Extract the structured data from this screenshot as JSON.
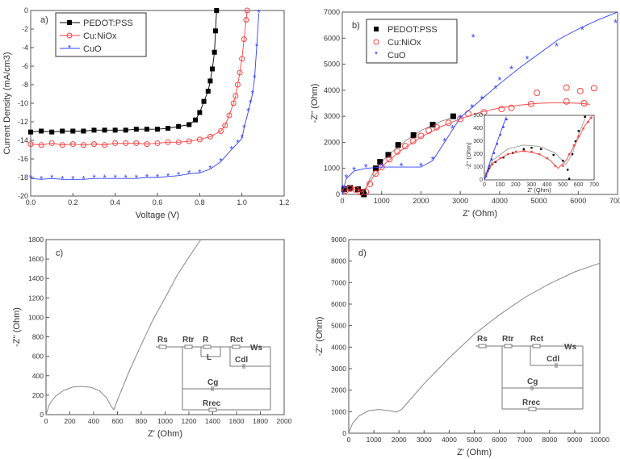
{
  "chart_data": [
    {
      "panel": "a)",
      "type": "line",
      "xlabel": "Voltage (V)",
      "ylabel": "Current Density (mA/cm3)",
      "xlim": [
        0,
        1.2
      ],
      "ylim": [
        -20,
        0
      ],
      "xticks": [
        "0.0",
        "0.2",
        "0.4",
        "0.6",
        "0.8",
        "1.0",
        "1.2"
      ],
      "yticks": [
        "0",
        "-2",
        "-4",
        "-6",
        "-8",
        "-10",
        "-12",
        "-14",
        "-16",
        "-18",
        "-20"
      ],
      "legend": "top-left",
      "series": [
        {
          "name": "PEDOT:PSS",
          "color": "#000000",
          "marker": "square",
          "x": [
            0,
            0.05,
            0.1,
            0.15,
            0.2,
            0.25,
            0.3,
            0.35,
            0.4,
            0.45,
            0.5,
            0.55,
            0.6,
            0.65,
            0.7,
            0.75,
            0.78,
            0.8,
            0.82,
            0.84,
            0.85,
            0.86,
            0.87,
            0.875,
            0.88
          ],
          "y": [
            -13.1,
            -13.0,
            -13.1,
            -13.0,
            -13.0,
            -13.0,
            -12.9,
            -12.9,
            -12.9,
            -12.9,
            -12.8,
            -12.8,
            -12.8,
            -12.7,
            -12.5,
            -12.3,
            -11.8,
            -11.0,
            -9.8,
            -8.7,
            -7.6,
            -6.3,
            -4.5,
            -2.2,
            0
          ]
        },
        {
          "name": "Cu:NiOx",
          "color": "#ff4040",
          "marker": "circle",
          "x": [
            0,
            0.05,
            0.1,
            0.15,
            0.2,
            0.25,
            0.3,
            0.35,
            0.4,
            0.45,
            0.5,
            0.55,
            0.6,
            0.65,
            0.7,
            0.75,
            0.8,
            0.85,
            0.9,
            0.92,
            0.94,
            0.96,
            0.97,
            0.98,
            0.99,
            1.0,
            1.01,
            1.02,
            1.025
          ],
          "y": [
            -14.4,
            -14.5,
            -14.3,
            -14.5,
            -14.4,
            -14.5,
            -14.4,
            -14.5,
            -14.3,
            -14.3,
            -14.3,
            -14.4,
            -14.3,
            -14.2,
            -14.2,
            -14.1,
            -13.9,
            -13.6,
            -13.0,
            -12.4,
            -11.3,
            -10.0,
            -9.2,
            -8.0,
            -6.7,
            -5.2,
            -3.1,
            -1.0,
            0
          ]
        },
        {
          "name": "CuO",
          "color": "#3040ff",
          "marker": "star",
          "x": [
            0,
            0.05,
            0.1,
            0.15,
            0.2,
            0.25,
            0.3,
            0.35,
            0.4,
            0.45,
            0.5,
            0.55,
            0.6,
            0.65,
            0.7,
            0.75,
            0.8,
            0.85,
            0.9,
            0.95,
            0.98,
            1.0,
            1.01,
            1.03,
            1.04,
            1.05,
            1.06,
            1.07,
            1.08
          ],
          "y": [
            -18.1,
            -18.2,
            -18.1,
            -18.2,
            -18.2,
            -18.2,
            -18.1,
            -18.1,
            -18.1,
            -18.1,
            -18.1,
            -18.0,
            -18.0,
            -17.9,
            -17.8,
            -17.6,
            -17.5,
            -17.1,
            -16.3,
            -15.0,
            -14.3,
            -13.8,
            -12.7,
            -10.9,
            -10.0,
            -9.0,
            -7.3,
            -3.9,
            -0.3
          ]
        }
      ]
    },
    {
      "panel": "b)",
      "type": "scatter",
      "xlabel": "Z' (Ohm)",
      "ylabel": "-Z'' (Ohm)",
      "xlim": [
        0,
        7000
      ],
      "ylim": [
        0,
        7000
      ],
      "xticks": [
        "0",
        "1000",
        "2000",
        "3000",
        "4000",
        "5000",
        "6000",
        "7000"
      ],
      "yticks": [
        "0",
        "1000",
        "2000",
        "3000",
        "4000",
        "5000",
        "6000",
        "7000"
      ],
      "legend": "top-left",
      "series": [
        {
          "name": "PEDOT:PSS",
          "color": "#000000",
          "marker": "square",
          "x": [
            50,
            200,
            400,
            520,
            550,
            850,
            960,
            1170,
            1420,
            1810,
            2300,
            2820
          ],
          "y": [
            200,
            250,
            200,
            100,
            0,
            1000,
            1250,
            1520,
            1900,
            2280,
            2680,
            3000
          ],
          "fit": {
            "color": "#888888",
            "x": [
              0,
              100,
              250,
              400,
              500,
              550,
              700,
              900,
              1200,
              1600,
              2000,
              2500,
              2900
            ],
            "y": [
              0,
              220,
              270,
              230,
              80,
              0,
              600,
              1100,
              1550,
              2050,
              2450,
              2800,
              3000
            ]
          }
        },
        {
          "name": "Cu:NiOx",
          "color": "#ff4040",
          "marker": "circle",
          "x": [
            80,
            200,
            350,
            470,
            600,
            700,
            850,
            1000,
            1200,
            1400,
            1600,
            1800,
            2000,
            2200,
            2400,
            2700,
            3000,
            3200,
            3600,
            4050,
            4300,
            4800,
            4950,
            5700,
            5700,
            6050,
            6150,
            6400
          ],
          "y": [
            150,
            220,
            180,
            80,
            100,
            400,
            800,
            1050,
            1350,
            1650,
            1850,
            2050,
            2250,
            2450,
            2580,
            2750,
            2900,
            3100,
            3150,
            3280,
            3320,
            3470,
            3900,
            4100,
            3570,
            3970,
            3500,
            4080
          ],
          "fit": {
            "color": "#ff4040",
            "x": [
              0,
              100,
              250,
              400,
              480,
              600,
              800,
              1100,
              1500,
              2000,
              2500,
              3000,
              3500,
              4000,
              4500,
              5000,
              5500,
              6000,
              6300
            ],
            "y": [
              0,
              170,
              220,
              170,
              80,
              250,
              700,
              1200,
              1700,
              2200,
              2600,
              2900,
              3150,
              3320,
              3430,
              3500,
              3520,
              3500,
              3460
            ]
          }
        },
        {
          "name": "CuO",
          "color": "#3040ff",
          "marker": "star",
          "x": [
            20,
            100,
            300,
            600,
            1000,
            1500,
            2000,
            2300,
            2600,
            2800,
            3000,
            3300,
            3550,
            3900,
            4000,
            4300,
            4700,
            5450,
            6100,
            6950,
            3330
          ],
          "y": [
            200,
            600,
            900,
            1000,
            1050,
            1050,
            1050,
            1300,
            2000,
            2500,
            2900,
            3300,
            3620,
            4020,
            4350,
            4770,
            5150,
            5650,
            6280,
            6550,
            6000
          ],
          "fit": {
            "color": "#3040ff",
            "x": [
              0,
              100,
              300,
              600,
              1000,
              1500,
              2000,
              2300,
              2600,
              3000,
              3500,
              4000,
              4500,
              5000,
              5500,
              6000,
              6500,
              7000
            ],
            "y": [
              0,
              600,
              900,
              1000,
              1050,
              1050,
              1050,
              1300,
              2000,
              2950,
              3600,
              4250,
              4850,
              5400,
              5950,
              6350,
              6700,
              7000
            ]
          }
        }
      ],
      "inset": {
        "xlabel": "Z' (Ohm)",
        "ylabel": "-Z'' (Ohm)",
        "xlim": [
          0,
          700
        ],
        "ylim": [
          0,
          500
        ],
        "xticks": [
          "0",
          "100",
          "200",
          "300",
          "400",
          "500",
          "600",
          "700"
        ],
        "yticks": [
          "0",
          "100",
          "200",
          "300",
          "400",
          "500"
        ],
        "series": [
          {
            "color": "#000000",
            "x": [
              30,
              70,
              120,
              180,
              250,
              300,
              360,
              440,
              500,
              530,
              540,
              560,
              580,
              600,
              640
            ],
            "y": [
              90,
              140,
              175,
              210,
              240,
              250,
              240,
              195,
              150,
              80,
              10,
              200,
              300,
              380,
              490
            ],
            "fit": {
              "x": [
                0,
                50,
                150,
                250,
                350,
                450,
                520,
                560,
                600,
                650
              ],
              "y": [
                0,
                150,
                240,
                270,
                260,
                210,
                120,
                200,
                350,
                500
              ]
            }
          },
          {
            "color": "#ff4040",
            "x": [
              10,
              50,
              100,
              150,
              200,
              250,
              300,
              350,
              400,
              450,
              500,
              540,
              570,
              600,
              630,
              660,
              680
            ],
            "y": [
              50,
              120,
              170,
              200,
              220,
              225,
              220,
              200,
              170,
              110,
              110,
              200,
              270,
              340,
              400,
              450,
              480
            ],
            "fit": {
              "x": [
                0,
                50,
                150,
                250,
                350,
                420,
                470,
                520,
                580,
                640,
                690
              ],
              "y": [
                0,
                130,
                200,
                225,
                200,
                150,
                90,
                150,
                280,
                420,
                500
              ]
            }
          },
          {
            "color": "#3040ff",
            "x": [
              10,
              20,
              30,
              45,
              60,
              80,
              100,
              120,
              140
            ],
            "y": [
              30,
              70,
              110,
              160,
              210,
              280,
              350,
              410,
              470
            ],
            "fit": {
              "x": [
                0,
                20,
                50,
                80,
                110,
                140
              ],
              "y": [
                0,
                80,
                190,
                290,
                390,
                490
              ]
            }
          }
        ]
      }
    },
    {
      "panel": "c)",
      "type": "line",
      "xlabel": "Z' (Ohm)",
      "ylabel": "-Z'' (Ohm)",
      "xlim": [
        0,
        2000
      ],
      "ylim": [
        0,
        1800
      ],
      "xticks": [
        "0",
        "200",
        "400",
        "600",
        "800",
        "1000",
        "1200",
        "1400",
        "1600",
        "1800",
        "2000"
      ],
      "yticks": [
        "0",
        "200",
        "400",
        "600",
        "800",
        "1000",
        "1200",
        "1400",
        "1600",
        "1800"
      ],
      "series": [
        {
          "color": "#888888",
          "x": [
            0,
            30,
            80,
            150,
            230,
            300,
            380,
            450,
            510,
            550,
            570,
            600,
            700,
            800,
            900,
            1000,
            1100,
            1200,
            1300
          ],
          "y": [
            0,
            110,
            190,
            250,
            285,
            290,
            280,
            245,
            170,
            80,
            50,
            150,
            450,
            720,
            980,
            1200,
            1430,
            1620,
            1800
          ]
        }
      ],
      "circuit": {
        "labels": [
          "Rs",
          "Rtr",
          "R",
          "L",
          "Rct",
          "Ws",
          "Cdl",
          "Cg",
          "Rrec"
        ]
      }
    },
    {
      "panel": "d)",
      "type": "line",
      "xlabel": "Z' (Ohm)",
      "ylabel": "-Z'' (Ohm)",
      "xlim": [
        0,
        10000
      ],
      "ylim": [
        0,
        9000
      ],
      "xticks": [
        "0",
        "1000",
        "2000",
        "3000",
        "4000",
        "5000",
        "6000",
        "7000",
        "8000",
        "9000",
        "10000"
      ],
      "yticks": [
        "0",
        "1000",
        "2000",
        "3000",
        "4000",
        "5000",
        "6000",
        "7000",
        "8000",
        "9000"
      ],
      "series": [
        {
          "color": "#888888",
          "x": [
            0,
            150,
            400,
            800,
            1200,
            1600,
            1900,
            2100,
            2400,
            3000,
            4000,
            5000,
            6000,
            7000,
            8000,
            9000,
            10000
          ],
          "y": [
            0,
            450,
            800,
            1050,
            1100,
            1050,
            980,
            1100,
            1500,
            2300,
            3500,
            4600,
            5500,
            6300,
            6950,
            7500,
            7900
          ]
        }
      ],
      "circuit": {
        "labels": [
          "Rs",
          "Rtr",
          "Rct",
          "Ws",
          "Cdl",
          "Cg",
          "Rrec"
        ]
      }
    }
  ]
}
